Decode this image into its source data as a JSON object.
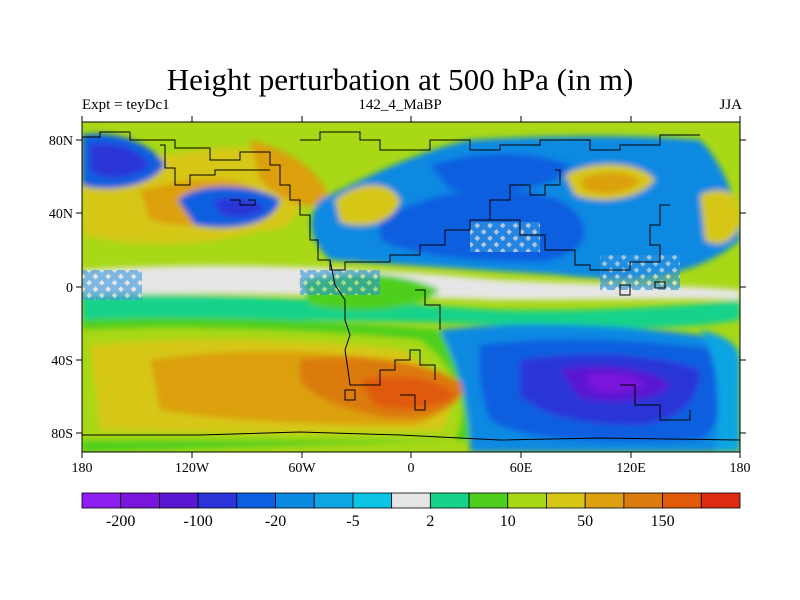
{
  "title": "Height perturbation at 500 hPa (in m)",
  "left_label": "Expt = teyDc1",
  "center_label": "142_4_MaBP",
  "right_label": "JJA",
  "map": {
    "lat_labels": [
      "80N",
      "40N",
      "0",
      "40S",
      "80S"
    ],
    "lon_labels": [
      "180",
      "120W",
      "60W",
      "0",
      "60E",
      "120E",
      "180"
    ]
  },
  "colorbar": {
    "colors": [
      "#8f1ff0",
      "#7a16dc",
      "#5a17d2",
      "#2a34d8",
      "#0c5fe0",
      "#0a89e2",
      "#0fa4e3",
      "#0bc4e6",
      "#e6e6e6",
      "#16d28a",
      "#4ecf1e",
      "#a8d816",
      "#d6c716",
      "#dca010",
      "#db7a0e",
      "#e05a0a",
      "#dd2a10"
    ],
    "labels": [
      {
        "text": "-200",
        "boundary": 1
      },
      {
        "text": "-100",
        "boundary": 3
      },
      {
        "text": "-20",
        "boundary": 5
      },
      {
        "text": "-5",
        "boundary": 7
      },
      {
        "text": "2",
        "boundary": 9
      },
      {
        "text": "10",
        "boundary": 11
      },
      {
        "text": "50",
        "boundary": 13
      },
      {
        "text": "150",
        "boundary": 15
      }
    ]
  }
}
